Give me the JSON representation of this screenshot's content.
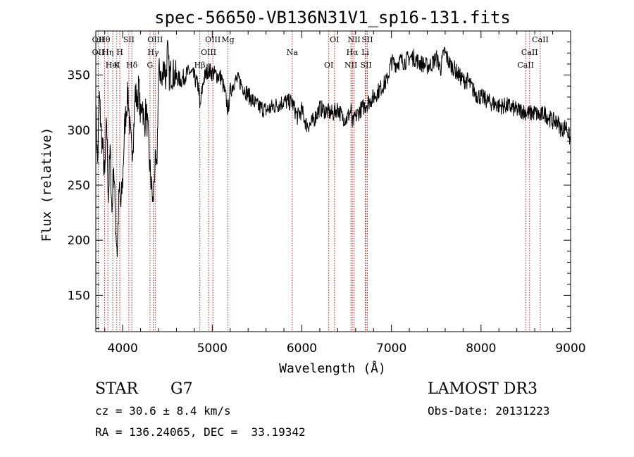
{
  "chart_data": {
    "type": "line",
    "title": "spec-56650-VB136N31V1_sp16-131.fits",
    "xlabel": "Wavelength (Å)",
    "ylabel": "Flux (relative)",
    "xlim": [
      3700,
      9000
    ],
    "ylim": [
      117,
      390
    ],
    "x_ticks": [
      4000,
      5000,
      6000,
      7000,
      8000,
      9000
    ],
    "x_tick_labels": [
      "4000",
      "5000",
      "6000",
      "7000",
      "8000",
      "9000"
    ],
    "y_ticks": [
      150,
      200,
      250,
      300,
      350
    ],
    "y_tick_labels": [
      "150",
      "200",
      "250",
      "300",
      "350"
    ],
    "series": [
      {
        "name": "flux",
        "x": [
          3700,
          3720,
          3740,
          3760,
          3780,
          3800,
          3820,
          3840,
          3860,
          3880,
          3900,
          3920,
          3940,
          3960,
          3980,
          4000,
          4020,
          4040,
          4060,
          4080,
          4100,
          4120,
          4140,
          4160,
          4180,
          4200,
          4220,
          4240,
          4260,
          4280,
          4300,
          4320,
          4340,
          4360,
          4380,
          4400,
          4420,
          4440,
          4460,
          4480,
          4500,
          4520,
          4550,
          4600,
          4650,
          4700,
          4750,
          4800,
          4850,
          4861,
          4900,
          4950,
          5000,
          5050,
          5100,
          5150,
          5175,
          5200,
          5250,
          5300,
          5400,
          5500,
          5600,
          5700,
          5800,
          5893,
          5950,
          6000,
          6050,
          6100,
          6150,
          6200,
          6250,
          6300,
          6350,
          6400,
          6450,
          6500,
          6550,
          6563,
          6600,
          6650,
          6700,
          6750,
          6800,
          6850,
          6900,
          6950,
          7000,
          7050,
          7100,
          7150,
          7200,
          7250,
          7300,
          7350,
          7400,
          7450,
          7500,
          7550,
          7590,
          7650,
          7700,
          7750,
          7800,
          7850,
          7900,
          7950,
          8000,
          8050,
          8100,
          8150,
          8200,
          8250,
          8300,
          8350,
          8400,
          8450,
          8500,
          8542,
          8600,
          8662,
          8700,
          8750,
          8800,
          8850,
          8900,
          8950,
          9000
        ],
        "y": [
          320,
          270,
          330,
          300,
          280,
          255,
          310,
          240,
          280,
          225,
          270,
          215,
          190,
          245,
          230,
          255,
          300,
          320,
          335,
          300,
          280,
          295,
          335,
          325,
          340,
          310,
          330,
          300,
          320,
          300,
          270,
          250,
          232,
          270,
          260,
          350,
          355,
          340,
          365,
          345,
          372,
          350,
          352,
          348,
          345,
          350,
          353,
          348,
          338,
          318,
          345,
          355,
          352,
          350,
          348,
          330,
          318,
          335,
          345,
          345,
          332,
          322,
          318,
          322,
          326,
          325,
          312,
          318,
          305,
          305,
          312,
          320,
          318,
          316,
          315,
          320,
          312,
          310,
          318,
          305,
          312,
          318,
          322,
          326,
          330,
          335,
          340,
          345,
          362,
          360,
          363,
          362,
          366,
          366,
          362,
          360,
          358,
          360,
          366,
          356,
          372,
          360,
          356,
          350,
          345,
          345,
          338,
          332,
          330,
          328,
          325,
          324,
          322,
          322,
          322,
          320,
          318,
          318,
          316,
          315,
          316,
          312,
          316,
          312,
          308,
          308,
          300,
          304,
          290
        ]
      }
    ],
    "spectral_lines": [
      {
        "name": "Hθ",
        "wavelength": 3798
      },
      {
        "name": "OII",
        "wavelength": 3727
      },
      {
        "name": "HeI",
        "wavelength": 3889
      },
      {
        "name": "OII",
        "wavelength": 3727
      },
      {
        "name": "Hη",
        "wavelength": 3835
      },
      {
        "name": "K",
        "wavelength": 3934
      },
      {
        "name": "SII",
        "wavelength": 4069
      },
      {
        "name": "H",
        "wavelength": 3968
      },
      {
        "name": "Hδ",
        "wavelength": 4102
      },
      {
        "name": "OIII",
        "wavelength": 4363
      },
      {
        "name": "Hγ",
        "wavelength": 4341
      },
      {
        "name": "G",
        "wavelength": 4305
      },
      {
        "name": "OIII",
        "wavelength": 5007
      },
      {
        "name": "OIII",
        "wavelength": 4959
      },
      {
        "name": "Hβ",
        "wavelength": 4861
      },
      {
        "name": "Mg",
        "wavelength": 5175
      },
      {
        "name": "Na",
        "wavelength": 5893
      },
      {
        "name": "OI",
        "wavelength": 6300
      },
      {
        "name": "OI",
        "wavelength": 6364
      },
      {
        "name": "Hα",
        "wavelength": 6563
      },
      {
        "name": "SII",
        "wavelength": 6717
      },
      {
        "name": "NII",
        "wavelength": 6583
      },
      {
        "name": "Li",
        "wavelength": 6708
      },
      {
        "name": "NII",
        "wavelength": 6548
      },
      {
        "name": "SII",
        "wavelength": 6731
      },
      {
        "name": "CaII",
        "wavelength": 8542
      },
      {
        "name": "CaII",
        "wavelength": 8498
      },
      {
        "name": "CaII",
        "wavelength": 8662
      }
    ]
  },
  "info": {
    "class": "STAR",
    "subclass": "G7",
    "survey": "LAMOST DR3",
    "redshift": "cz = 30.6 ± 8.4 km/s",
    "obs_date": "Obs-Date: 20131223",
    "coords": "RA = 136.24065, DEC =  33.19342"
  },
  "colors": {
    "line": "#000000",
    "spectral_line": "#b22222",
    "axes": "#000000"
  }
}
